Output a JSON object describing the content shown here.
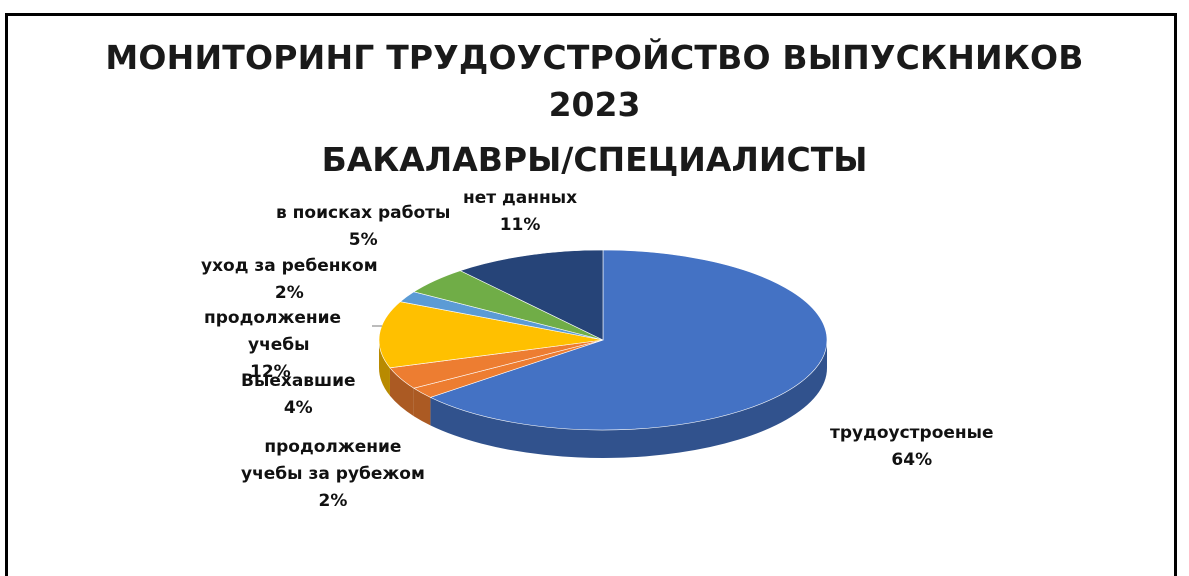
{
  "chart_data": {
    "type": "pie",
    "title_lines": [
      "МОНИТОРИНГ ТРУДОУСТРОЙСТВО ВЫПУСКНИКОВ",
      "2023",
      "БАКАЛАВРЫ/СПЕЦИАЛИСТЫ"
    ],
    "slices": [
      {
        "name": "трудоустроеные",
        "value": 64,
        "label": "64%",
        "color": "#4472C4"
      },
      {
        "name": "продолжение учебы за рубежом",
        "value": 2,
        "label": "2%",
        "color": "#ED7D31"
      },
      {
        "name": "Выехавшие",
        "value": 4,
        "label": "4%",
        "color": "#ED7D31"
      },
      {
        "name": "продолжение учебы",
        "value": 12,
        "label": "12%",
        "color": "#FFC000"
      },
      {
        "name": "уход за ребенком",
        "value": 2,
        "label": "2%",
        "color": "#5B9BD5"
      },
      {
        "name": "в поисках работы",
        "value": 5,
        "label": "5%",
        "color": "#70AD47"
      },
      {
        "name": "нет данных",
        "value": 11,
        "label": "11%",
        "color": "#264478"
      }
    ],
    "legend": "none",
    "style": "3d"
  }
}
